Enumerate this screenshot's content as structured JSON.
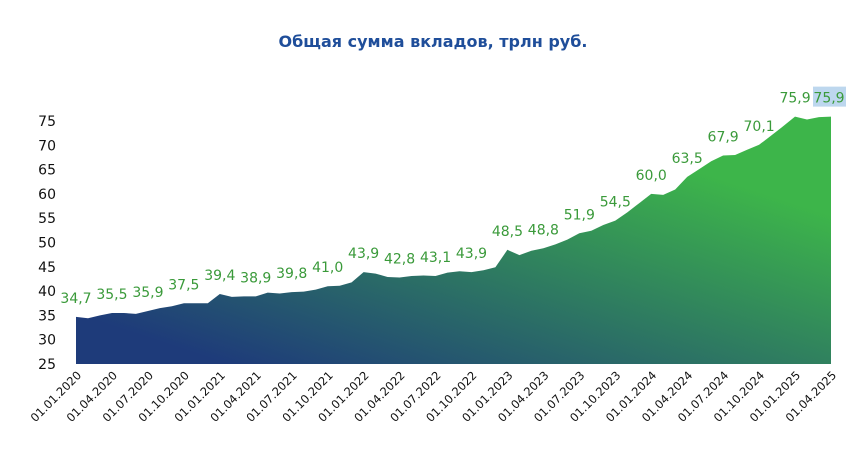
{
  "chart_data": {
    "type": "area",
    "title": "Общая сумма вкладов, трлн руб.",
    "xlabel": "",
    "ylabel": "",
    "ylim": [
      25,
      75
    ],
    "yticks": [
      "25",
      "30",
      "35",
      "40",
      "45",
      "50",
      "55",
      "60",
      "65",
      "70",
      "75"
    ],
    "grid": false,
    "x_tick_labels": [
      "01.01.2020",
      "01.04.2020",
      "01.07.2020",
      "01.10.2020",
      "01.01.2021",
      "01.04.2021",
      "01.07.2021",
      "01.10.2021",
      "01.01.2022",
      "01.04.2022",
      "01.07.2022",
      "01.10.2022",
      "01.01.2023",
      "01.04.2023",
      "01.07.2023",
      "01.10.2023",
      "01.01.2024",
      "01.04.2024",
      "01.07.2024",
      "01.10.2024",
      "01.01.2025",
      "01.04.2025"
    ],
    "data_labels": [
      "34,7",
      "35,5",
      "35,9",
      "37,5",
      "39,4",
      "38,9",
      "39,8",
      "41,0",
      "43,9",
      "42,8",
      "43,1",
      "43,9",
      "48,5",
      "48,8",
      "51,9",
      "54,5",
      "60,0",
      "63,5",
      "67,9",
      "70,1",
      "75,9",
      "75,9"
    ],
    "monthly_values": [
      34.7,
      34.4,
      35.0,
      35.5,
      35.5,
      35.3,
      35.9,
      36.5,
      36.9,
      37.5,
      37.5,
      37.5,
      39.4,
      38.8,
      38.9,
      38.9,
      39.7,
      39.5,
      39.8,
      39.9,
      40.3,
      41.0,
      41.1,
      41.8,
      43.9,
      43.6,
      42.9,
      42.8,
      43.1,
      43.2,
      43.1,
      43.8,
      44.1,
      43.9,
      44.3,
      44.9,
      48.5,
      47.4,
      48.3,
      48.8,
      49.6,
      50.6,
      51.9,
      52.4,
      53.6,
      54.5,
      56.2,
      58.1,
      60.0,
      59.8,
      60.9,
      63.5,
      65.1,
      66.7,
      67.9,
      68.0,
      69.1,
      70.1,
      72.0,
      73.9,
      75.9,
      75.3,
      75.8,
      75.9
    ],
    "colors": {
      "gradient_start": "#1E3B7A",
      "gradient_end": "#3DB54A",
      "label": "#3A9A3A",
      "highlight": "#BDD7EE",
      "title": "#1F4E9A"
    }
  }
}
